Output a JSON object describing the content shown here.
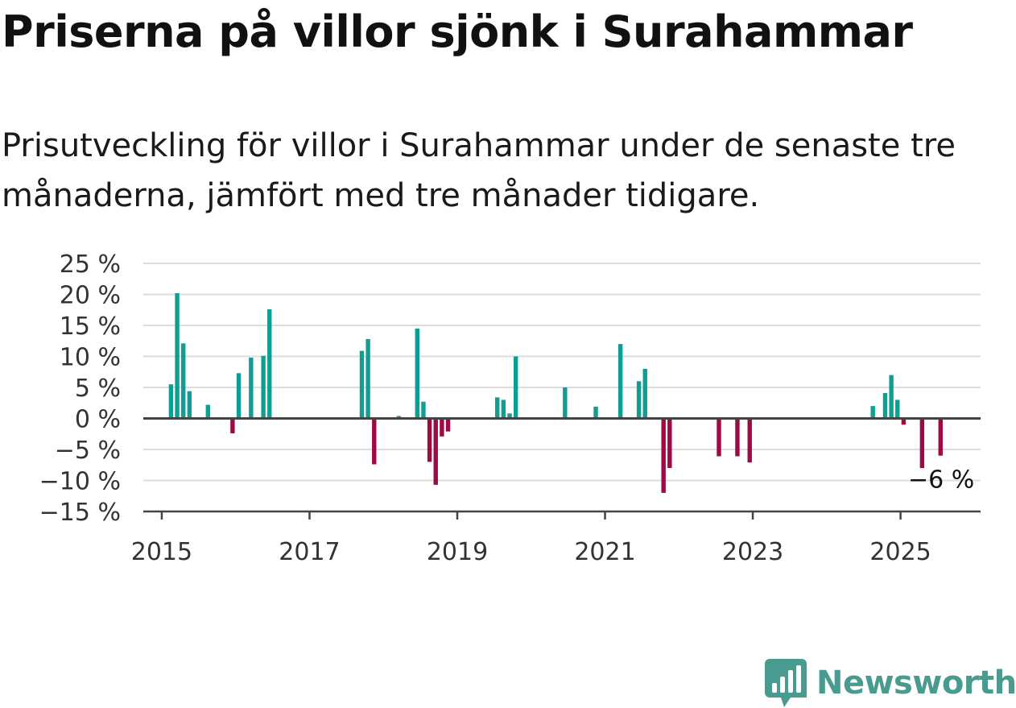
{
  "header": {
    "title": "Priserna på villor sjönk i Surahammar",
    "subtitle": "Prisutveckling för villor i Surahammar under de senaste tre månaderna, jämfört med tre månader tidigare."
  },
  "brand": {
    "name": "Newsworthy",
    "color": "#4a9b8f",
    "icon": "bar-chart-icon"
  },
  "colors": {
    "positive": "#0e9e94",
    "negative": "#9e0a45",
    "grid": "#dddddd",
    "axis": "#444444"
  },
  "chart_data": {
    "type": "bar",
    "title": "",
    "xlabel": "",
    "ylabel": "",
    "ylim": [
      -15,
      25
    ],
    "y_ticks": [
      25,
      20,
      15,
      10,
      5,
      0,
      -5,
      -10,
      -15
    ],
    "y_tick_labels": [
      "25 %",
      "20 %",
      "15 %",
      "10 %",
      "5 %",
      "0 %",
      "−5 %",
      "−10 %",
      "−15 %"
    ],
    "x_ticks": [
      2015,
      2017,
      2019,
      2021,
      2023,
      2025
    ],
    "x_tick_labels": [
      "2015",
      "2017",
      "2019",
      "2021",
      "2023",
      "2025"
    ],
    "xlim": [
      "2014-10",
      "2026-02"
    ],
    "grid": true,
    "annotation": {
      "date": "2025-07",
      "value": -6,
      "label": "−6 %"
    },
    "dates": [
      "2015-02",
      "2015-03",
      "2015-04",
      "2015-05",
      "2015-08",
      "2015-12",
      "2016-01",
      "2016-03",
      "2016-05",
      "2016-06",
      "2017-09",
      "2017-10",
      "2017-11",
      "2018-03",
      "2018-06",
      "2018-07",
      "2018-08",
      "2018-09",
      "2018-10",
      "2018-11",
      "2019-07",
      "2019-08",
      "2019-09",
      "2019-10",
      "2020-06",
      "2020-11",
      "2021-03",
      "2021-06",
      "2021-07",
      "2021-10",
      "2021-11",
      "2022-07",
      "2022-10",
      "2022-12",
      "2024-08",
      "2024-10",
      "2024-11",
      "2024-12",
      "2025-01",
      "2025-04",
      "2025-07"
    ],
    "values": [
      5.5,
      20.2,
      12.1,
      4.4,
      2.2,
      -2.4,
      7.3,
      9.8,
      10.1,
      17.6,
      10.9,
      12.8,
      -7.4,
      0.4,
      14.5,
      2.7,
      -7.0,
      -10.7,
      -2.9,
      -2.1,
      3.4,
      3.0,
      0.8,
      10.0,
      5.0,
      1.9,
      12.0,
      6.0,
      8.0,
      -12.0,
      -8.0,
      -6.1,
      -6.1,
      -7.1,
      2.0,
      4.1,
      7.0,
      3.0,
      -1.0,
      -8.0,
      -6.0
    ]
  }
}
